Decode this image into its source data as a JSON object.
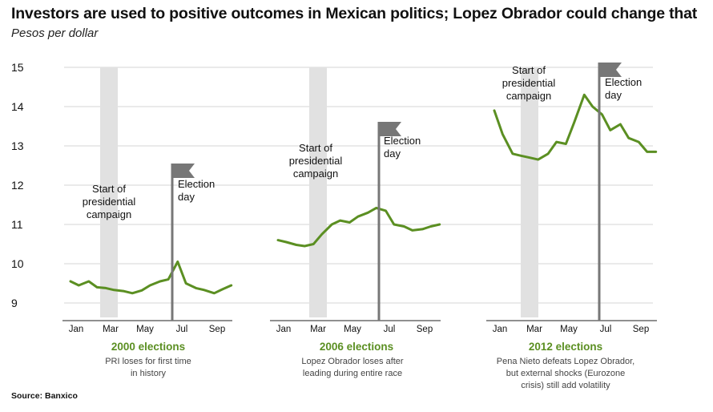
{
  "title": "Investors are used to positive outcomes in Mexican politics; Lopez Obrador could change that",
  "subtitle": "Pesos per dollar",
  "source": "Source: Banxico",
  "colors": {
    "line": "#5b8f22",
    "campaign_band": "#e1e1e1",
    "flag": "#777777",
    "grid": "#d4d4d4"
  },
  "chart_data": {
    "type": "line",
    "title": "Investors are used to positive outcomes in Mexican politics; Lopez Obrador could change that",
    "ylabel": "Pesos per dollar",
    "ylim": [
      9,
      15
    ],
    "yticks": [
      9,
      10,
      11,
      12,
      13,
      14,
      15
    ],
    "grid": true,
    "panels": [
      {
        "name": "2000 elections",
        "note_lines": [
          "PRI loses for first time",
          "in history"
        ],
        "x_ticks": [
          "Jan",
          "Mar",
          "May",
          "Jul",
          "Sep"
        ],
        "campaign_label_lines": [
          "Start of",
          "presidential",
          "campaign"
        ],
        "election_label_lines": [
          "Election",
          "day"
        ],
        "campaign_start": "Mar",
        "election_day": "Jul 2",
        "series": {
          "x": [
            "Jan 1",
            "Jan 15",
            "Feb 1",
            "Feb 15",
            "Mar 1",
            "Mar 15",
            "Apr 1",
            "Apr 15",
            "May 1",
            "May 15",
            "Jun 1",
            "Jun 15",
            "Jul 1",
            "Jul 15",
            "Aug 1",
            "Aug 15",
            "Sep 1",
            "Sep 15",
            "Sep 30"
          ],
          "y": [
            9.55,
            9.45,
            9.55,
            9.4,
            9.38,
            9.33,
            9.3,
            9.25,
            9.32,
            9.45,
            9.55,
            9.6,
            10.05,
            9.5,
            9.38,
            9.33,
            9.25,
            9.35,
            9.45
          ]
        }
      },
      {
        "name": "2006 elections",
        "note_lines": [
          "Lopez Obrador loses after",
          "leading during entire race"
        ],
        "x_ticks": [
          "Jan",
          "Mar",
          "May",
          "Jul",
          "Sep"
        ],
        "campaign_label_lines": [
          "Start of",
          "presidential",
          "campaign"
        ],
        "election_label_lines": [
          "Election",
          "day"
        ],
        "campaign_start": "Mar",
        "election_day": "Jul 2",
        "series": {
          "x": [
            "Jan 1",
            "Jan 15",
            "Feb 1",
            "Feb 15",
            "Mar 1",
            "Mar 15",
            "Apr 1",
            "Apr 15",
            "May 1",
            "May 15",
            "Jun 1",
            "Jun 15",
            "Jul 1",
            "Jul 15",
            "Aug 1",
            "Aug 15",
            "Sep 1",
            "Sep 15",
            "Sep 30"
          ],
          "y": [
            10.6,
            10.55,
            10.48,
            10.45,
            10.5,
            10.75,
            11.0,
            11.1,
            11.05,
            11.2,
            11.3,
            11.42,
            11.35,
            11.0,
            10.95,
            10.85,
            10.88,
            10.95,
            11.0
          ]
        }
      },
      {
        "name": "2012 elections",
        "note_lines": [
          "Pena Nieto defeats Lopez Obrador,",
          "but external shocks (Eurozone",
          "crisis) still add volatility"
        ],
        "x_ticks": [
          "Jan",
          "Mar",
          "May",
          "Jul",
          "Sep"
        ],
        "campaign_label_lines": [
          "Start of",
          "presidential",
          "campaign"
        ],
        "election_label_lines": [
          "Election",
          "day"
        ],
        "campaign_start": "Mar",
        "election_day": "Jul 1",
        "series": {
          "x": [
            "Jan 1",
            "Jan 15",
            "Feb 1",
            "Feb 15",
            "Mar 1",
            "Mar 15",
            "Apr 1",
            "Apr 15",
            "May 1",
            "May 15",
            "Jun 1",
            "Jun 15",
            "Jul 1",
            "Jul 15",
            "Aug 1",
            "Aug 15",
            "Sep 1",
            "Sep 15",
            "Sep 30"
          ],
          "y": [
            13.9,
            13.3,
            12.8,
            12.75,
            12.7,
            12.65,
            12.8,
            13.1,
            13.05,
            13.6,
            14.3,
            14.0,
            13.8,
            13.4,
            13.55,
            13.2,
            13.1,
            12.85,
            12.85
          ]
        }
      }
    ]
  }
}
